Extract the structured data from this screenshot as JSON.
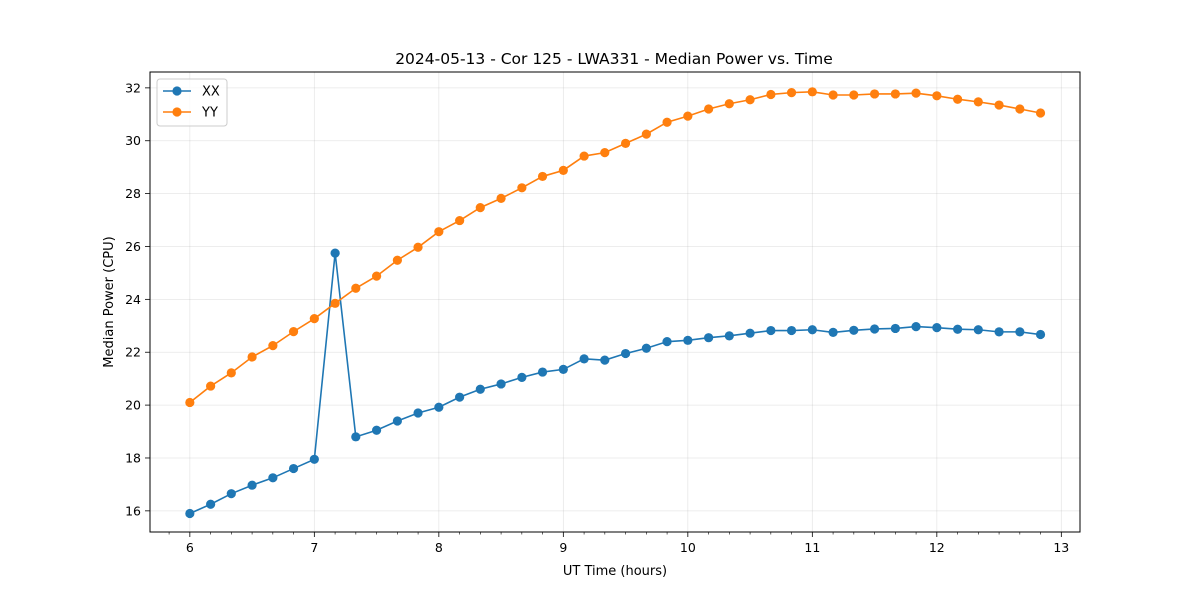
{
  "chart_data": {
    "type": "line",
    "title": "2024-05-13 - Cor 125 - LWA331 - Median Power vs. Time",
    "xlabel": "UT Time (hours)",
    "ylabel": "Median Power (CPU)",
    "xlim": [
      5.68,
      13.15
    ],
    "ylim": [
      15.2,
      32.6
    ],
    "xticks": [
      6,
      7,
      8,
      9,
      10,
      11,
      12,
      13
    ],
    "xtick_labels": [
      "6",
      "7",
      "8",
      "9",
      "10",
      "11",
      "12",
      "13"
    ],
    "yticks": [
      16,
      18,
      20,
      22,
      24,
      26,
      28,
      30,
      32
    ],
    "ytick_labels": [
      "16",
      "18",
      "20",
      "22",
      "24",
      "26",
      "28",
      "30",
      "32"
    ],
    "grid": true,
    "legend_position": "upper-left",
    "x": [
      6.0,
      6.167,
      6.333,
      6.5,
      6.667,
      6.833,
      7.0,
      7.167,
      7.333,
      7.5,
      7.667,
      7.833,
      8.0,
      8.167,
      8.333,
      8.5,
      8.667,
      8.833,
      9.0,
      9.167,
      9.333,
      9.5,
      9.667,
      9.833,
      10.0,
      10.167,
      10.333,
      10.5,
      10.667,
      10.833,
      11.0,
      11.167,
      11.333,
      11.5,
      11.667,
      11.833,
      12.0,
      12.167,
      12.333,
      12.5,
      12.667,
      12.833
    ],
    "series": [
      {
        "name": "XX",
        "color": "#1f77b4",
        "values": [
          15.9,
          16.25,
          16.65,
          16.97,
          17.25,
          17.6,
          17.95,
          25.75,
          18.8,
          19.05,
          19.4,
          19.7,
          19.92,
          20.3,
          20.6,
          20.8,
          21.05,
          21.25,
          21.35,
          21.75,
          21.7,
          21.95,
          22.15,
          22.4,
          22.45,
          22.55,
          22.62,
          22.72,
          22.82,
          22.82,
          22.85,
          22.75,
          22.83,
          22.88,
          22.9,
          22.97,
          22.93,
          22.87,
          22.85,
          22.77,
          22.77,
          22.67
        ]
      },
      {
        "name": "YY",
        "color": "#ff7f0e",
        "values": [
          20.1,
          20.72,
          21.22,
          21.82,
          22.25,
          22.78,
          23.27,
          23.85,
          24.42,
          24.88,
          25.48,
          25.97,
          26.56,
          26.98,
          27.47,
          27.82,
          28.22,
          28.65,
          28.88,
          29.42,
          29.55,
          29.9,
          30.25,
          30.7,
          30.93,
          31.2,
          31.4,
          31.55,
          31.75,
          31.82,
          31.85,
          31.73,
          31.73,
          31.77,
          31.77,
          31.8,
          31.7,
          31.57,
          31.47,
          31.35,
          31.2,
          31.05
        ]
      }
    ]
  }
}
